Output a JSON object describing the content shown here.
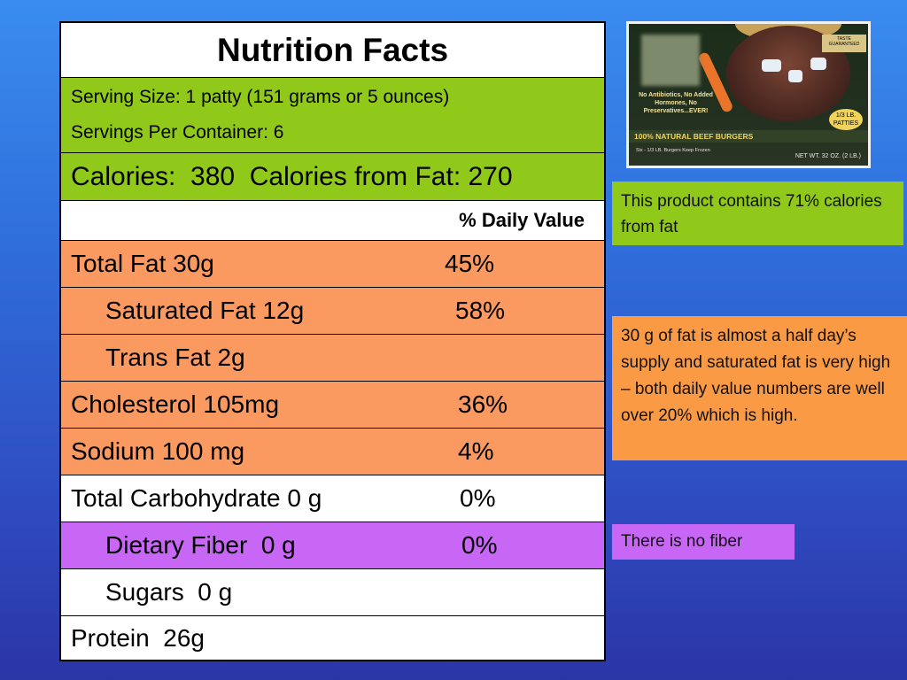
{
  "title": "Nutrition Facts",
  "serving_size": "Serving Size: 1 patty (151 grams or 5 ounces)",
  "servings_per_container": "Servings Per Container: 6",
  "calories_line": "Calories:  380  Calories from Fat: 270",
  "daily_value_header": "% Daily Value",
  "nutrients": [
    {
      "label": "Total Fat 30g",
      "percent": "45%"
    },
    {
      "label": "Saturated Fat 12g",
      "percent": "58%"
    },
    {
      "label": "Trans Fat 2g",
      "percent": ""
    },
    {
      "label": "Cholesterol 105mg",
      "percent": "36%"
    },
    {
      "label": "Sodium 100 mg",
      "percent": "4%"
    },
    {
      "label": "Total Carbohydrate 0 g",
      "percent": "0%"
    },
    {
      "label": "Dietary Fiber  0 g",
      "percent": "0%"
    },
    {
      "label": "Sugars  0 g",
      "percent": ""
    },
    {
      "label": "Protein  26g",
      "percent": ""
    }
  ],
  "product_box": {
    "claims": "No Antibiotics, No Added Hormones, No Preservatives...EVER!",
    "band": "100% NATURAL BEEF BURGERS",
    "small": "Six - 1/3 LB. Burgers Keep Frozen",
    "net": "NET WT. 32 OZ. (2 LB.)",
    "seal": "1/3 LB. PATTIES",
    "badge": "TASTE GUARANTEED"
  },
  "callouts": {
    "fat_calories": "This product contains 71% calories from fat",
    "fat_note": "30 g of fat is almost a half day’s supply and saturated fat is very high – both daily value numbers are well over 20% which is high.",
    "fiber_note": "There is no fiber"
  },
  "colors": {
    "green": "#90c91a",
    "orange": "#fa9a61",
    "purple": "#c866f5"
  }
}
